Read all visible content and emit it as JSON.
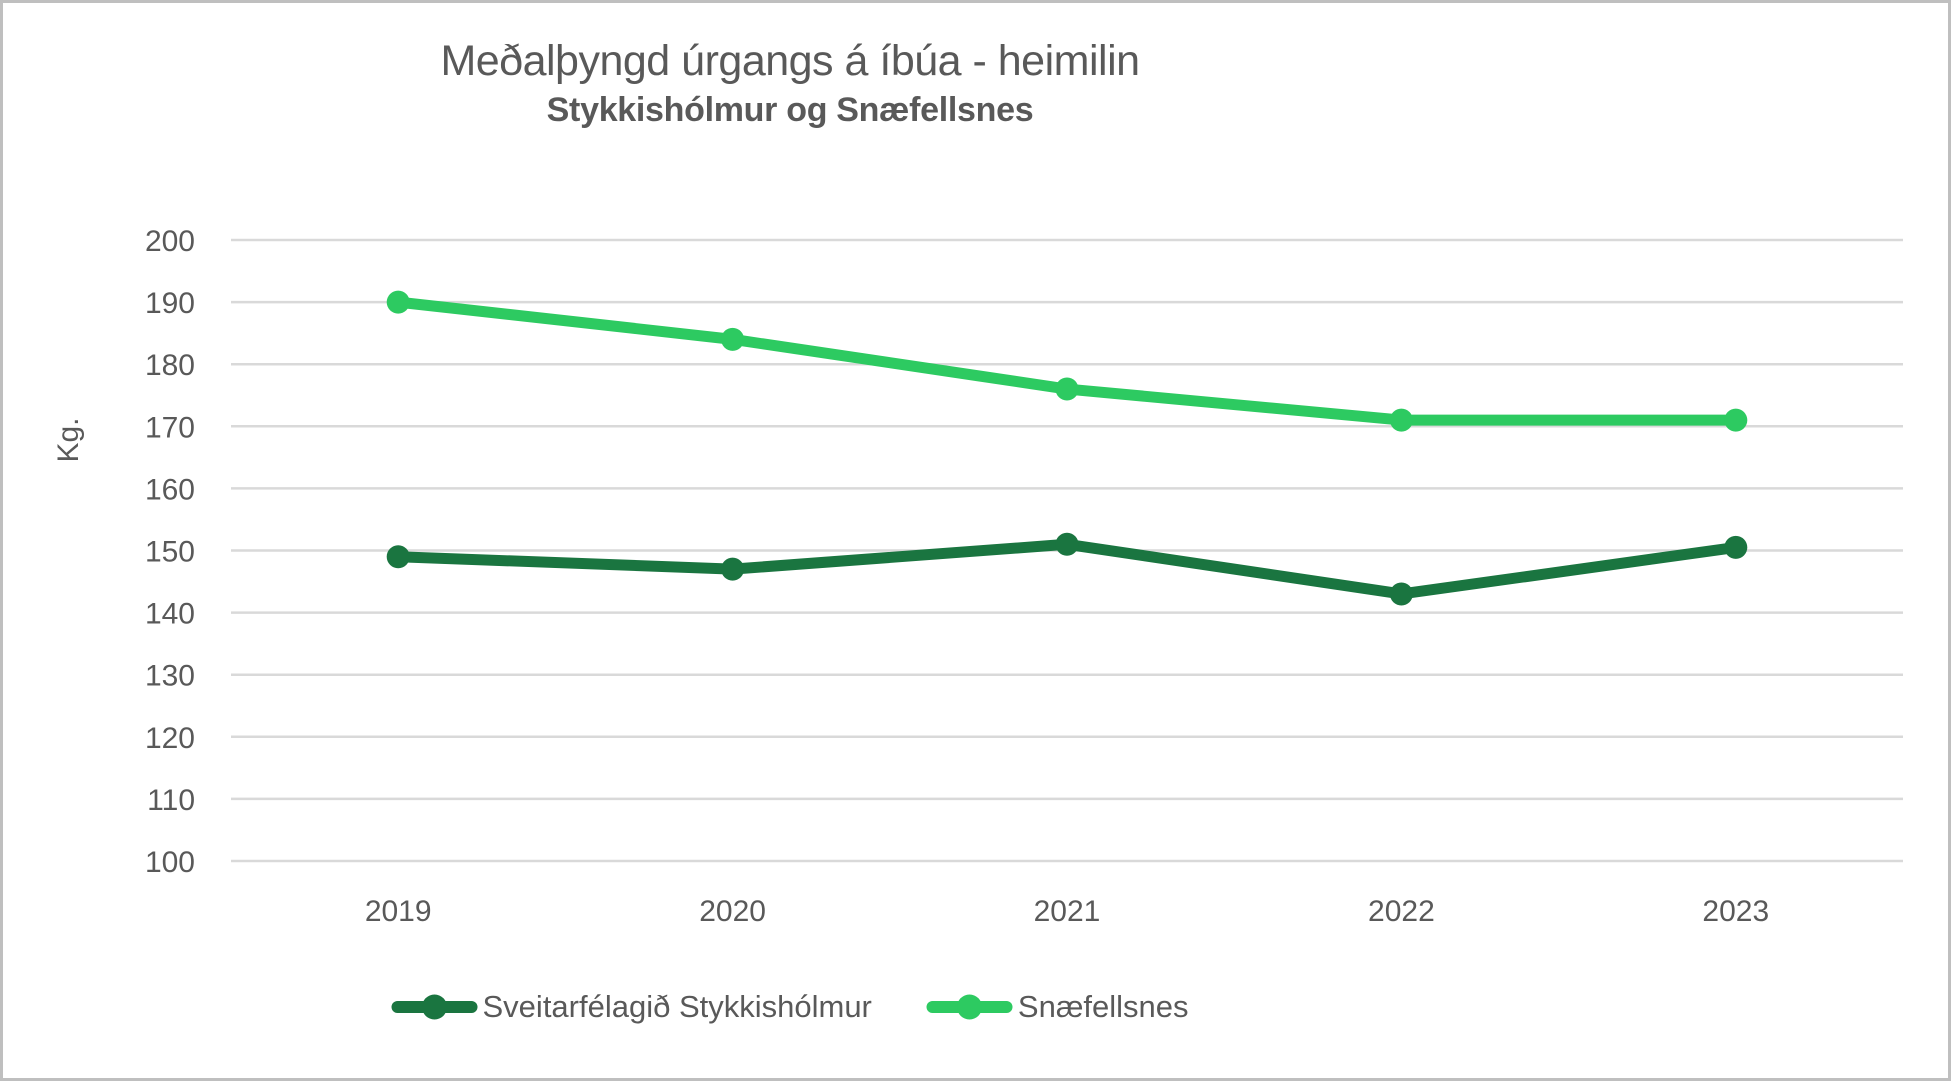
{
  "title": "Meðalþyngd úrgangs á íbúa - heimilin",
  "subtitle": "Stykkishólmur og Snæfellsnes",
  "colors": {
    "text_gray": "#595959",
    "gridline": "#d9d9d9",
    "border": "#bfbfbf",
    "dark_green": "#1a7540",
    "bright_green": "#2dca61"
  },
  "chart_data": {
    "type": "line",
    "title": "Meðalþyngd úrgangs á íbúa - heimilin",
    "subtitle": "Stykkishólmur og Snæfellsnes",
    "ylabel": "Kg.",
    "ylim": [
      100,
      200
    ],
    "y_ticks": [
      200,
      190,
      180,
      170,
      160,
      150,
      140,
      130,
      120,
      110,
      100
    ],
    "categories": [
      "2019",
      "2020",
      "2021",
      "2022",
      "2023"
    ],
    "series": [
      {
        "name": "Sveitarfélagið Stykkishólmur",
        "color": "#1a7540",
        "values": [
          149,
          147,
          151,
          143,
          150.5
        ]
      },
      {
        "name": "Snæfellsnes",
        "color": "#2dca61",
        "values": [
          190,
          184,
          176,
          171,
          171
        ]
      }
    ],
    "grid": true,
    "legend_position": "bottom"
  }
}
